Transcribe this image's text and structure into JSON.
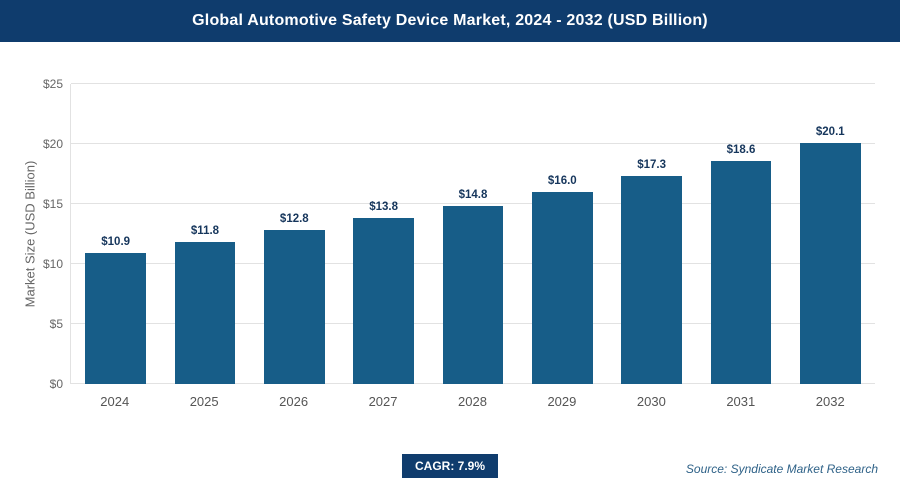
{
  "header": {
    "title": "Global Automotive Safety Device Market, 2024 - 2032 (USD Billion)"
  },
  "chart_data": {
    "type": "bar",
    "title": "Global Automotive Safety Device Market, 2024 - 2032 (USD Billion)",
    "categories": [
      "2024",
      "2025",
      "2026",
      "2027",
      "2028",
      "2029",
      "2030",
      "2031",
      "2032"
    ],
    "values": [
      10.9,
      11.8,
      12.8,
      13.8,
      14.8,
      16.0,
      17.3,
      18.6,
      20.1
    ],
    "value_labels": [
      "$10.9",
      "$11.8",
      "$12.8",
      "$13.8",
      "$14.8",
      "$16.0",
      "$17.3",
      "$18.6",
      "$20.1"
    ],
    "xlabel": "",
    "ylabel": "Market Size (USD Billion)",
    "ylim": [
      0,
      25
    ],
    "ytick_values": [
      0,
      5,
      10,
      15,
      20,
      25
    ],
    "ytick_labels": [
      "$0",
      "$5",
      "$10",
      "$15",
      "$20",
      "$25"
    ],
    "grid": true,
    "legend": false,
    "bar_color": "#175d88"
  },
  "footer": {
    "cagr_label": "CAGR: 7.9%",
    "source": "Source: Syndicate Market Research"
  },
  "colors": {
    "banner_bg": "#0f3c6d",
    "bar": "#175d88",
    "value_label": "#16365c",
    "gridline": "#e2e2e2",
    "source_text": "#2f6288"
  }
}
